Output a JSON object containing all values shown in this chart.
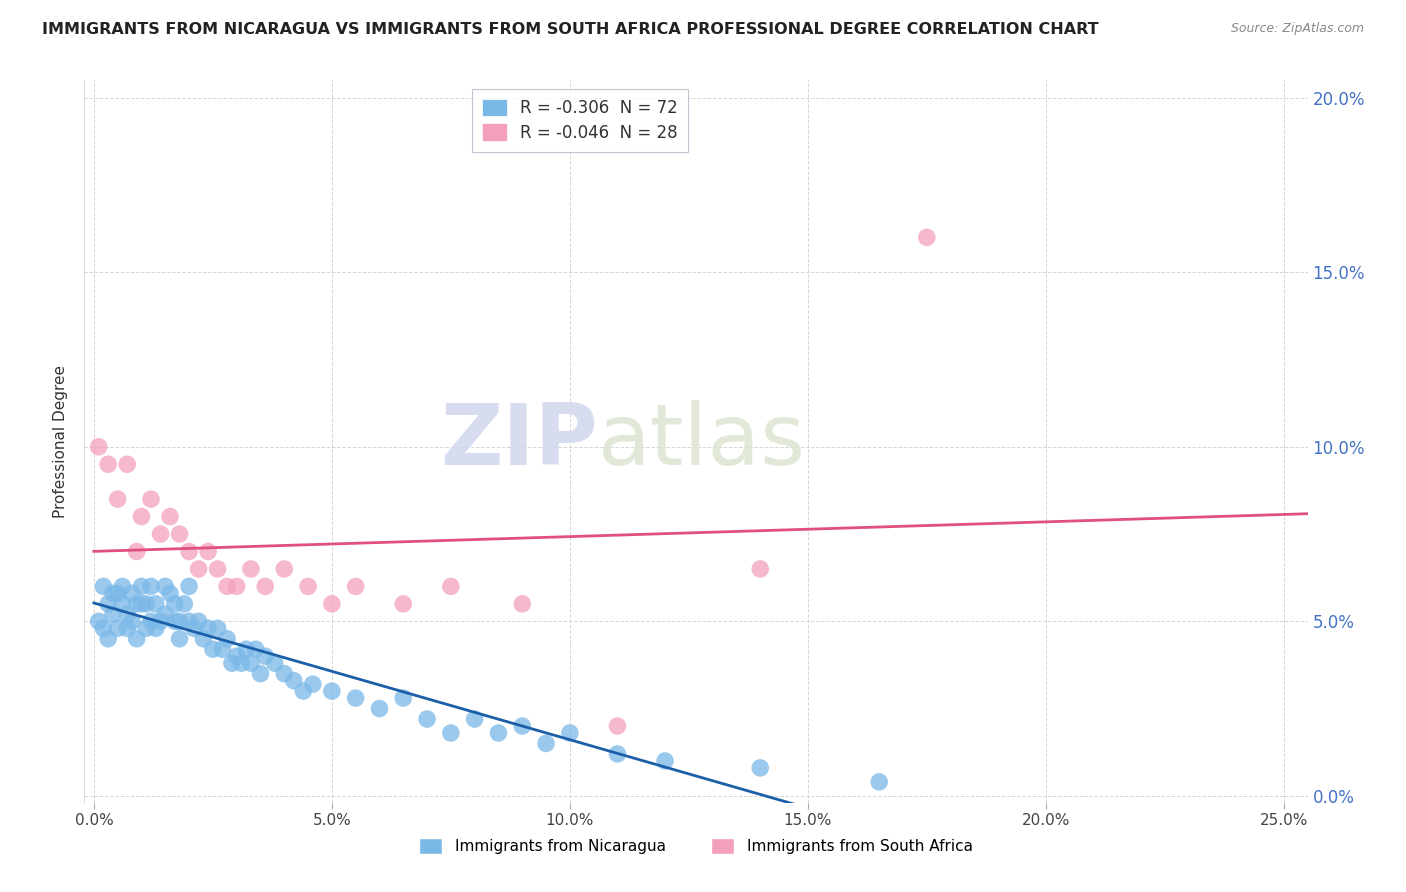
{
  "title": "IMMIGRANTS FROM NICARAGUA VS IMMIGRANTS FROM SOUTH AFRICA PROFESSIONAL DEGREE CORRELATION CHART",
  "source": "Source: ZipAtlas.com",
  "ylabel": "Professional Degree",
  "x_ticks": [
    0.0,
    0.05,
    0.1,
    0.15,
    0.2,
    0.25
  ],
  "y_ticks": [
    0.0,
    0.05,
    0.1,
    0.15,
    0.2
  ],
  "xlim": [
    -0.002,
    0.255
  ],
  "ylim": [
    -0.002,
    0.205
  ],
  "legend_r_n": [
    {
      "label_r": "R = ",
      "r_val": "-0.306",
      "label_n": "  N = ",
      "n_val": "72",
      "color": "#7ab8e8"
    },
    {
      "label_r": "R = ",
      "r_val": "-0.046",
      "label_n": "  N = ",
      "n_val": "28",
      "color": "#f4a0bc"
    }
  ],
  "nicaragua_x": [
    0.001,
    0.002,
    0.002,
    0.003,
    0.003,
    0.004,
    0.004,
    0.005,
    0.005,
    0.006,
    0.006,
    0.007,
    0.007,
    0.008,
    0.008,
    0.009,
    0.009,
    0.01,
    0.01,
    0.011,
    0.011,
    0.012,
    0.012,
    0.013,
    0.013,
    0.014,
    0.015,
    0.015,
    0.016,
    0.017,
    0.017,
    0.018,
    0.018,
    0.019,
    0.02,
    0.02,
    0.021,
    0.022,
    0.023,
    0.024,
    0.025,
    0.026,
    0.027,
    0.028,
    0.029,
    0.03,
    0.031,
    0.032,
    0.033,
    0.034,
    0.035,
    0.036,
    0.038,
    0.04,
    0.042,
    0.044,
    0.046,
    0.05,
    0.055,
    0.06,
    0.065,
    0.07,
    0.075,
    0.08,
    0.085,
    0.09,
    0.095,
    0.1,
    0.11,
    0.12,
    0.14,
    0.165
  ],
  "nicaragua_y": [
    0.05,
    0.048,
    0.06,
    0.045,
    0.055,
    0.052,
    0.058,
    0.048,
    0.058,
    0.055,
    0.06,
    0.052,
    0.048,
    0.058,
    0.05,
    0.055,
    0.045,
    0.055,
    0.06,
    0.055,
    0.048,
    0.06,
    0.05,
    0.055,
    0.048,
    0.05,
    0.06,
    0.052,
    0.058,
    0.05,
    0.055,
    0.05,
    0.045,
    0.055,
    0.05,
    0.06,
    0.048,
    0.05,
    0.045,
    0.048,
    0.042,
    0.048,
    0.042,
    0.045,
    0.038,
    0.04,
    0.038,
    0.042,
    0.038,
    0.042,
    0.035,
    0.04,
    0.038,
    0.035,
    0.033,
    0.03,
    0.032,
    0.03,
    0.028,
    0.025,
    0.028,
    0.022,
    0.018,
    0.022,
    0.018,
    0.02,
    0.015,
    0.018,
    0.012,
    0.01,
    0.008,
    0.004
  ],
  "south_africa_x": [
    0.001,
    0.003,
    0.005,
    0.007,
    0.009,
    0.01,
    0.012,
    0.014,
    0.016,
    0.018,
    0.02,
    0.022,
    0.024,
    0.026,
    0.028,
    0.03,
    0.033,
    0.036,
    0.04,
    0.045,
    0.05,
    0.055,
    0.065,
    0.075,
    0.09,
    0.11,
    0.14,
    0.175
  ],
  "south_africa_y": [
    0.1,
    0.095,
    0.085,
    0.095,
    0.07,
    0.08,
    0.085,
    0.075,
    0.08,
    0.075,
    0.07,
    0.065,
    0.07,
    0.065,
    0.06,
    0.06,
    0.065,
    0.06,
    0.065,
    0.06,
    0.055,
    0.06,
    0.055,
    0.06,
    0.055,
    0.02,
    0.065,
    0.16
  ],
  "nicaragua_color": "#7ab8e8",
  "south_africa_color": "#f4a0bc",
  "trendline_nicaragua_color": "#1a5fa8",
  "trendline_south_africa_color": "#e0507a",
  "watermark_text": "ZIP",
  "watermark_text2": "atlas",
  "background_color": "#ffffff",
  "grid_color": "#cccccc",
  "right_tick_color": "#4472c4",
  "title_color": "#222222",
  "source_color": "#888888",
  "legend_box_color": "#e8f0f8",
  "legend_box_color2": "#fce8f0"
}
